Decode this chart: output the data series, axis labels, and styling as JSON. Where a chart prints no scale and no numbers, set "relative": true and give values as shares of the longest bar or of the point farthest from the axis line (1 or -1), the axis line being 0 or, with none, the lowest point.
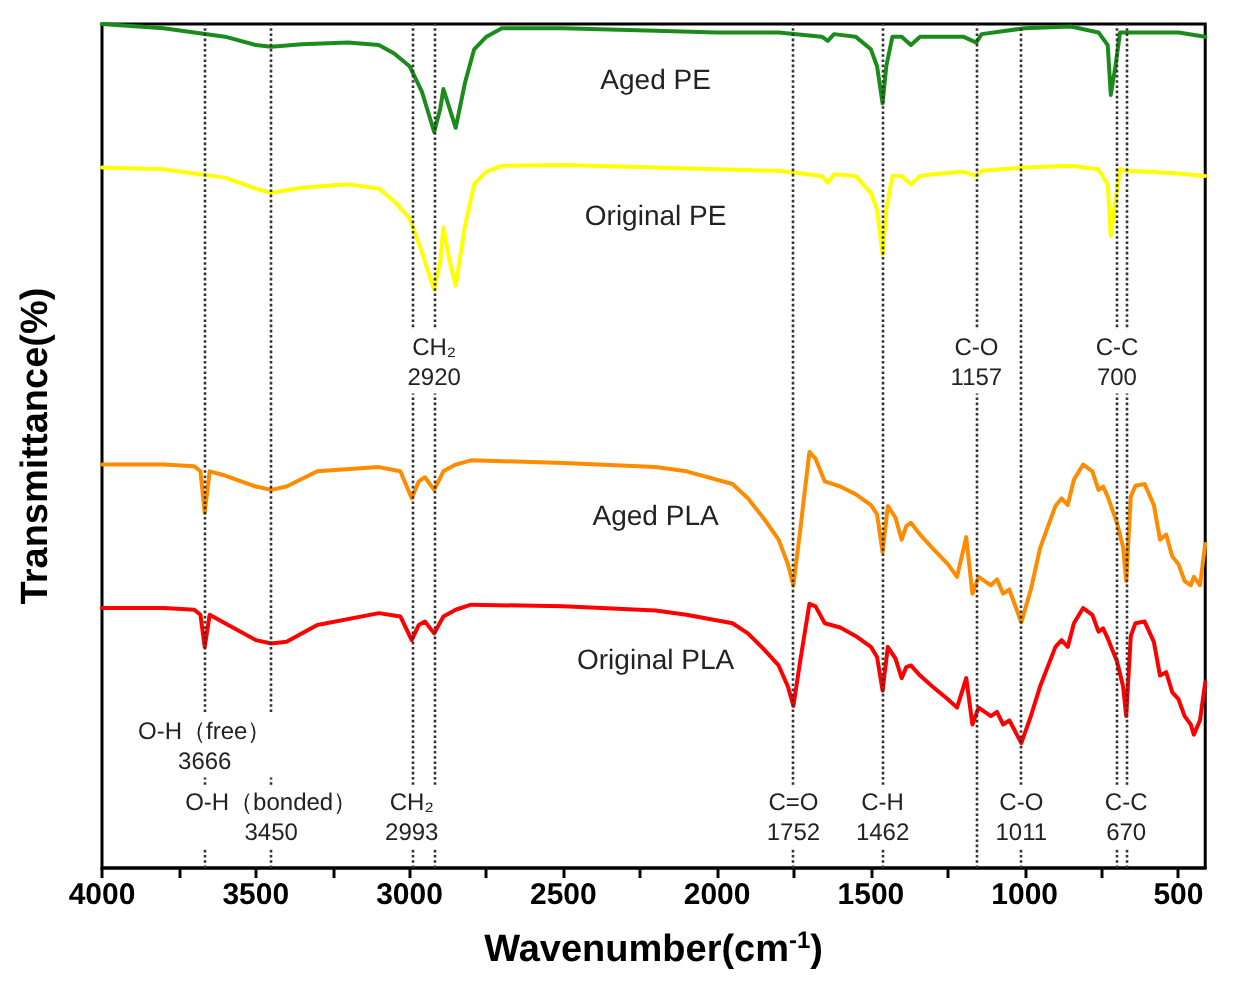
{
  "chart_data": {
    "type": "line",
    "relative": true,
    "xlabel": "Wavenumber(cm$^{-1}$)",
    "ylabel": "Transmittance(%)",
    "xlim": [
      4000,
      413
    ],
    "xticks": [
      4000,
      {
        "value": 3750,
        "label": null
      },
      3500,
      {
        "value": 3250,
        "label": null
      },
      3000,
      {
        "value": 2750,
        "label": null
      },
      2500,
      {
        "value": 2250,
        "label": null
      },
      2000,
      {
        "value": 1750,
        "label": null
      },
      1500,
      {
        "value": 1250,
        "label": null
      },
      1000,
      {
        "value": 750,
        "label": null
      },
      500
    ],
    "grid": false,
    "marker": "none",
    "line_style": "solid",
    "series": [
      {
        "name": "Aged PE",
        "color": "#1b8c1b",
        "x": [
          4000,
          3800,
          3600,
          3500,
          3450,
          3350,
          3200,
          3100,
          3050,
          3000,
          2960,
          2920,
          2900,
          2890,
          2870,
          2850,
          2820,
          2790,
          2750,
          2700,
          2500,
          2200,
          2000,
          1800,
          1660,
          1640,
          1620,
          1550,
          1500,
          1480,
          1462,
          1450,
          1430,
          1400,
          1370,
          1340,
          1300,
          1200,
          1157,
          1140,
          1000,
          850,
          760,
          730,
          720,
          705,
          690,
          670,
          600,
          500,
          413
        ],
        "values": [
          1.0,
          0.995,
          0.985,
          0.975,
          0.973,
          0.976,
          0.978,
          0.975,
          0.965,
          0.95,
          0.92,
          0.872,
          0.9,
          0.923,
          0.9,
          0.877,
          0.93,
          0.97,
          0.985,
          0.995,
          0.995,
          0.992,
          0.99,
          0.99,
          0.985,
          0.98,
          0.988,
          0.985,
          0.97,
          0.95,
          0.906,
          0.95,
          0.985,
          0.985,
          0.975,
          0.985,
          0.985,
          0.985,
          0.978,
          0.988,
          0.995,
          0.997,
          0.99,
          0.975,
          0.916,
          0.95,
          0.99,
          0.99,
          0.99,
          0.99,
          0.985
        ]
      },
      {
        "name": "Original PE",
        "color": "#ffff00",
        "x": [
          4000,
          3800,
          3600,
          3500,
          3450,
          3350,
          3200,
          3100,
          3050,
          3000,
          2960,
          2920,
          2900,
          2890,
          2870,
          2850,
          2820,
          2790,
          2750,
          2700,
          2500,
          2200,
          2000,
          1800,
          1660,
          1640,
          1620,
          1550,
          1500,
          1480,
          1462,
          1450,
          1430,
          1400,
          1370,
          1340,
          1300,
          1200,
          1157,
          1140,
          1000,
          850,
          760,
          730,
          720,
          705,
          690,
          670,
          600,
          500,
          413
        ],
        "values": [
          0.83,
          0.828,
          0.818,
          0.805,
          0.8,
          0.806,
          0.81,
          0.805,
          0.79,
          0.77,
          0.73,
          0.685,
          0.72,
          0.759,
          0.72,
          0.69,
          0.76,
          0.81,
          0.825,
          0.832,
          0.833,
          0.83,
          0.828,
          0.826,
          0.82,
          0.812,
          0.822,
          0.82,
          0.8,
          0.78,
          0.727,
          0.78,
          0.82,
          0.82,
          0.81,
          0.82,
          0.822,
          0.825,
          0.82,
          0.826,
          0.83,
          0.832,
          0.828,
          0.81,
          0.749,
          0.79,
          0.828,
          0.826,
          0.825,
          0.823,
          0.82
        ]
      },
      {
        "name": "Aged PLA",
        "color": "#ff8c00",
        "x": [
          4000,
          3800,
          3700,
          3680,
          3666,
          3650,
          3600,
          3500,
          3450,
          3400,
          3300,
          3100,
          3030,
          2993,
          2970,
          2950,
          2920,
          2890,
          2850,
          2800,
          2500,
          2200,
          2100,
          1950,
          1900,
          1850,
          1800,
          1770,
          1752,
          1730,
          1700,
          1680,
          1650,
          1600,
          1550,
          1500,
          1480,
          1462,
          1445,
          1420,
          1400,
          1385,
          1370,
          1340,
          1300,
          1250,
          1220,
          1190,
          1170,
          1150,
          1130,
          1110,
          1090,
          1070,
          1050,
          1011,
          980,
          950,
          900,
          880,
          860,
          840,
          810,
          780,
          760,
          745,
          730,
          700,
          680,
          670,
          655,
          640,
          610,
          580,
          560,
          540,
          520,
          500,
          480,
          460,
          450,
          430,
          413
        ],
        "values": [
          0.478,
          0.478,
          0.476,
          0.47,
          0.421,
          0.47,
          0.465,
          0.452,
          0.448,
          0.452,
          0.47,
          0.475,
          0.47,
          0.438,
          0.458,
          0.463,
          0.448,
          0.47,
          0.478,
          0.483,
          0.48,
          0.475,
          0.47,
          0.455,
          0.438,
          0.415,
          0.389,
          0.36,
          0.335,
          0.4,
          0.493,
          0.485,
          0.458,
          0.452,
          0.443,
          0.43,
          0.419,
          0.374,
          0.429,
          0.415,
          0.389,
          0.405,
          0.409,
          0.395,
          0.379,
          0.36,
          0.345,
          0.392,
          0.325,
          0.345,
          0.34,
          0.335,
          0.342,
          0.325,
          0.33,
          0.291,
          0.33,
          0.379,
          0.429,
          0.438,
          0.43,
          0.46,
          0.478,
          0.47,
          0.448,
          0.452,
          0.44,
          0.409,
          0.38,
          0.34,
          0.44,
          0.453,
          0.455,
          0.43,
          0.389,
          0.395,
          0.369,
          0.36,
          0.34,
          0.335,
          0.345,
          0.335,
          0.384
        ]
      },
      {
        "name": "Original PLA",
        "color": "#ff0000",
        "x": [
          4000,
          3800,
          3700,
          3680,
          3666,
          3650,
          3600,
          3500,
          3450,
          3400,
          3300,
          3100,
          3030,
          2993,
          2970,
          2950,
          2920,
          2890,
          2850,
          2800,
          2500,
          2200,
          2100,
          1950,
          1900,
          1850,
          1800,
          1770,
          1752,
          1730,
          1700,
          1680,
          1650,
          1600,
          1550,
          1500,
          1480,
          1462,
          1445,
          1420,
          1400,
          1385,
          1370,
          1340,
          1300,
          1250,
          1220,
          1190,
          1170,
          1150,
          1130,
          1110,
          1090,
          1070,
          1050,
          1011,
          980,
          950,
          900,
          880,
          860,
          840,
          810,
          780,
          760,
          745,
          730,
          700,
          680,
          670,
          655,
          640,
          610,
          580,
          560,
          540,
          520,
          500,
          480,
          460,
          450,
          430,
          413
        ],
        "values": [
          0.308,
          0.308,
          0.306,
          0.3,
          0.262,
          0.3,
          0.29,
          0.27,
          0.266,
          0.268,
          0.288,
          0.302,
          0.298,
          0.27,
          0.288,
          0.292,
          0.278,
          0.298,
          0.306,
          0.312,
          0.31,
          0.305,
          0.3,
          0.29,
          0.278,
          0.26,
          0.24,
          0.215,
          0.192,
          0.245,
          0.313,
          0.31,
          0.29,
          0.285,
          0.275,
          0.262,
          0.25,
          0.21,
          0.262,
          0.248,
          0.225,
          0.238,
          0.24,
          0.228,
          0.215,
          0.2,
          0.19,
          0.225,
          0.17,
          0.19,
          0.185,
          0.18,
          0.185,
          0.17,
          0.175,
          0.148,
          0.18,
          0.215,
          0.262,
          0.27,
          0.262,
          0.29,
          0.308,
          0.3,
          0.28,
          0.284,
          0.272,
          0.245,
          0.215,
          0.18,
          0.275,
          0.29,
          0.292,
          0.268,
          0.228,
          0.232,
          0.208,
          0.2,
          0.18,
          0.17,
          0.158,
          0.175,
          0.22
        ]
      }
    ],
    "ref_lines": [
      {
        "axis": "x",
        "value": 3666,
        "color": "#333333",
        "line_style": "dotted"
      },
      {
        "axis": "x",
        "value": 3450,
        "color": "#333333",
        "line_style": "dotted"
      },
      {
        "axis": "x",
        "value": 2993,
        "color": "#333333",
        "line_style": "dotted"
      },
      {
        "axis": "x",
        "value": 2920,
        "color": "#333333",
        "line_style": "dotted"
      },
      {
        "axis": "x",
        "value": 1752,
        "color": "#333333",
        "line_style": "dotted"
      },
      {
        "axis": "x",
        "value": 1462,
        "color": "#333333",
        "line_style": "dotted"
      },
      {
        "axis": "x",
        "value": 1157,
        "color": "#333333",
        "line_style": "dotted"
      },
      {
        "axis": "x",
        "value": 1011,
        "color": "#333333",
        "line_style": "dotted"
      },
      {
        "axis": "x",
        "value": 700,
        "color": "#333333",
        "line_style": "dotted"
      },
      {
        "axis": "x",
        "value": 670,
        "color": "#333333",
        "line_style": "dotted"
      }
    ],
    "annotations": [
      {
        "text": "CH₂\n2920",
        "x": 2920,
        "y": 0.6
      },
      {
        "text": "C-O\n1157",
        "x": 1157,
        "y": 0.6
      },
      {
        "text": "C-C\n700",
        "x": 700,
        "y": 0.6
      },
      {
        "text": "O-H（free）\n3666",
        "x": 3666,
        "y": 0.145
      },
      {
        "text": "O-H（bonded）\n3450",
        "x": 3450,
        "y": 0.06
      },
      {
        "text": "CH₂\n2993",
        "x": 2993,
        "y": 0.06
      },
      {
        "text": "C=O\n1752",
        "x": 1752,
        "y": 0.06
      },
      {
        "text": "C-H\n1462",
        "x": 1462,
        "y": 0.06
      },
      {
        "text": "C-O\n1011",
        "x": 1011,
        "y": 0.06
      },
      {
        "text": "C-C\n670",
        "x": 670,
        "y": 0.06
      }
    ]
  }
}
